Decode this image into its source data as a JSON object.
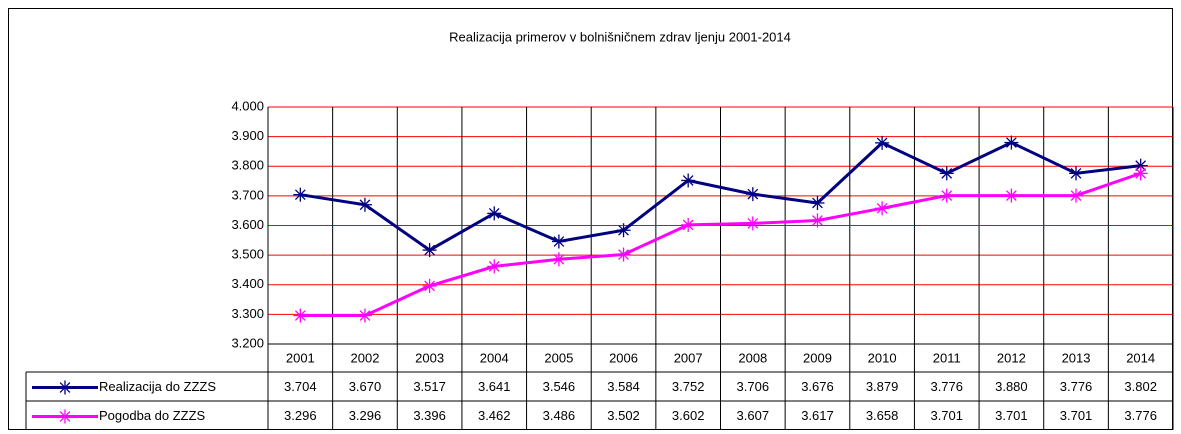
{
  "chart_data": {
    "type": "line",
    "title": "Realizacija primerov  v  bolnišničnem zdrav ljenju 2001-2014",
    "categories": [
      "2001",
      "2002",
      "2003",
      "2004",
      "2005",
      "2006",
      "2007",
      "2008",
      "2009",
      "2010",
      "2011",
      "2012",
      "2013",
      "2014"
    ],
    "series": [
      {
        "name": "Realizacija do ZZZS",
        "color": "#000080",
        "values": [
          3704,
          3670,
          3517,
          3641,
          3546,
          3584,
          3752,
          3706,
          3676,
          3879,
          3776,
          3880,
          3776,
          3802
        ],
        "value_labels": [
          "3.704",
          "3.670",
          "3.517",
          "3.641",
          "3.546",
          "3.584",
          "3.752",
          "3.706",
          "3.676",
          "3.879",
          "3.776",
          "3.880",
          "3.776",
          "3.802"
        ]
      },
      {
        "name": "Pogodba do ZZZS",
        "color": "#ff00ff",
        "values": [
          3296,
          3296,
          3396,
          3462,
          3486,
          3502,
          3602,
          3607,
          3617,
          3658,
          3701,
          3701,
          3701,
          3776
        ],
        "value_labels": [
          "3.296",
          "3.296",
          "3.396",
          "3.462",
          "3.486",
          "3.502",
          "3.602",
          "3.607",
          "3.617",
          "3.658",
          "3.701",
          "3.701",
          "3.701",
          "3.776"
        ]
      }
    ],
    "ylim": [
      3200,
      4000
    ],
    "yticks": [
      {
        "value": 3200,
        "label": "3.200"
      },
      {
        "value": 3300,
        "label": "3.300"
      },
      {
        "value": 3400,
        "label": "3.400"
      },
      {
        "value": 3500,
        "label": "3.500"
      },
      {
        "value": 3600,
        "label": "3.600"
      },
      {
        "value": 3700,
        "label": "3.700"
      },
      {
        "value": 3800,
        "label": "3.800"
      },
      {
        "value": 3900,
        "label": "3.900"
      },
      {
        "value": 4000,
        "label": "4.000"
      }
    ],
    "grid": true,
    "grid_color": "#ff0000"
  }
}
